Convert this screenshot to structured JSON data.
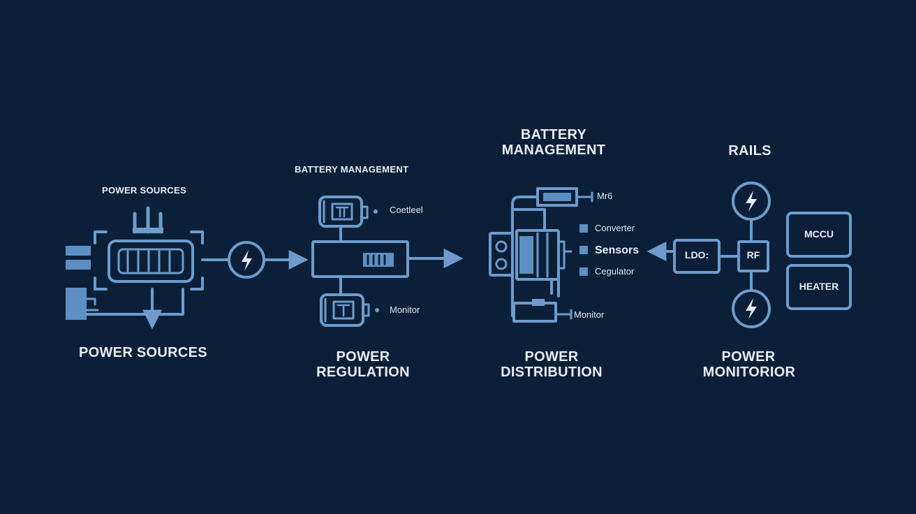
{
  "colors": {
    "background": "#0b2038",
    "line": "#6d9ccc",
    "fill": "#5d8fc2",
    "text": "#e8eef5"
  },
  "stages": [
    {
      "id": "sources",
      "title": "POWER SOURCES",
      "caption_line1": "POWER SOURCES",
      "caption_line2": ""
    },
    {
      "id": "regulation",
      "title": "BATTERY MANAGEMENT",
      "caption_line1": "POWER",
      "caption_line2": "REGULATION"
    },
    {
      "id": "distribution",
      "title_line1": "BATTERY",
      "title_line2": "MANAGEMENT",
      "caption_line1": "POWER",
      "caption_line2": "DISTRIBUTION"
    },
    {
      "id": "monitoring",
      "title": "RAILS",
      "caption_line1": "POWER",
      "caption_line2": "MONITORIOR"
    }
  ],
  "regulation_labels": {
    "top": "Coetleel",
    "bottom": "Monitor"
  },
  "distribution_labels": {
    "top": "Mr6",
    "list": [
      "Converter",
      "Sensors",
      "Cegulator"
    ],
    "bottom": "Monitor"
  },
  "monitor_boxes": {
    "ldo": "LDO:",
    "rf": "RF",
    "mcu": "MCCU",
    "heater": "HEATER"
  }
}
